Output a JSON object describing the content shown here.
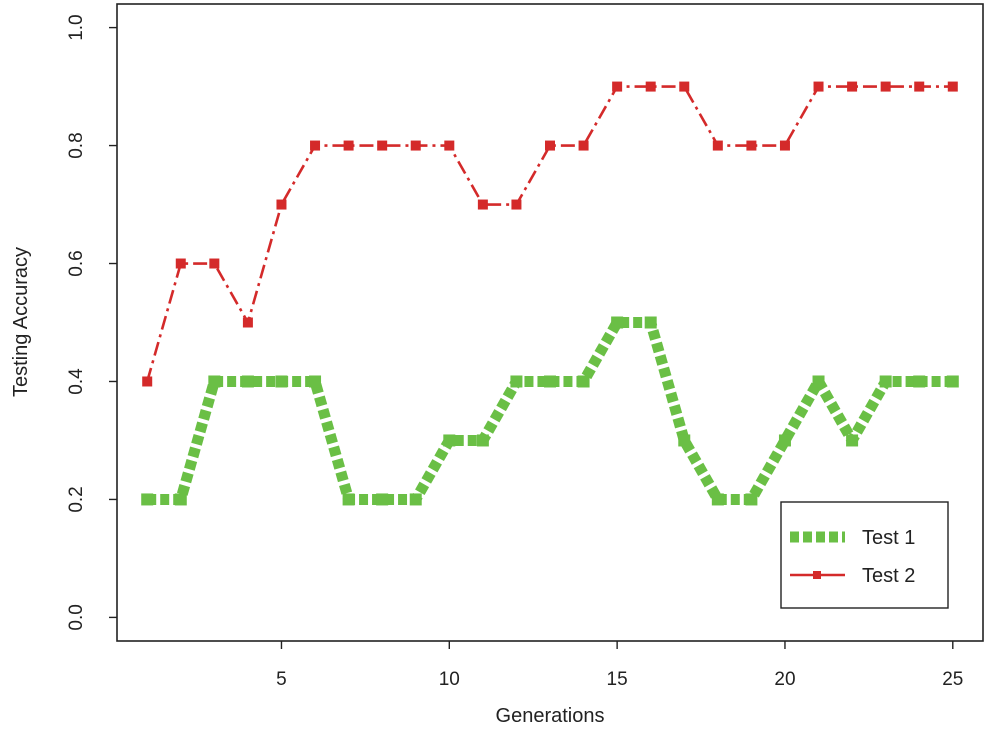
{
  "chart_data": {
    "type": "line",
    "title": "",
    "xlabel": "Generations",
    "ylabel": "Testing Accuracy",
    "xlim": [
      0.1,
      25.9
    ],
    "ylim": [
      -0.04,
      1.04
    ],
    "x_ticks": [
      5,
      10,
      15,
      20,
      25
    ],
    "x_tick_labels": [
      "5",
      "10",
      "15",
      "20",
      "25"
    ],
    "y_ticks": [
      0.0,
      0.2,
      0.4,
      0.6,
      0.8,
      1.0
    ],
    "y_tick_labels": [
      "0.0",
      "0.2",
      "0.4",
      "0.6",
      "0.8",
      "1.0"
    ],
    "grid": false,
    "legend_position": "bottom-right",
    "x": [
      1,
      2,
      3,
      4,
      5,
      6,
      7,
      8,
      9,
      10,
      11,
      12,
      13,
      14,
      15,
      16,
      17,
      18,
      19,
      20,
      21,
      22,
      23,
      24,
      25
    ],
    "series": [
      {
        "name": "Test 1",
        "color": "#6abf45",
        "values": [
          0.2,
          0.2,
          0.4,
          0.4,
          0.4,
          0.4,
          0.2,
          0.2,
          0.2,
          0.3,
          0.3,
          0.4,
          0.4,
          0.4,
          0.5,
          0.5,
          0.3,
          0.2,
          0.2,
          0.3,
          0.4,
          0.3,
          0.4,
          0.4,
          0.4
        ]
      },
      {
        "name": "Test 2",
        "color": "#d42a2a",
        "values": [
          0.4,
          0.6,
          0.6,
          0.5,
          0.7,
          0.8,
          0.8,
          0.8,
          0.8,
          0.8,
          0.7,
          0.7,
          0.8,
          0.8,
          0.9,
          0.9,
          0.9,
          0.8,
          0.8,
          0.8,
          0.9,
          0.9,
          0.9,
          0.9,
          0.9
        ]
      }
    ]
  }
}
